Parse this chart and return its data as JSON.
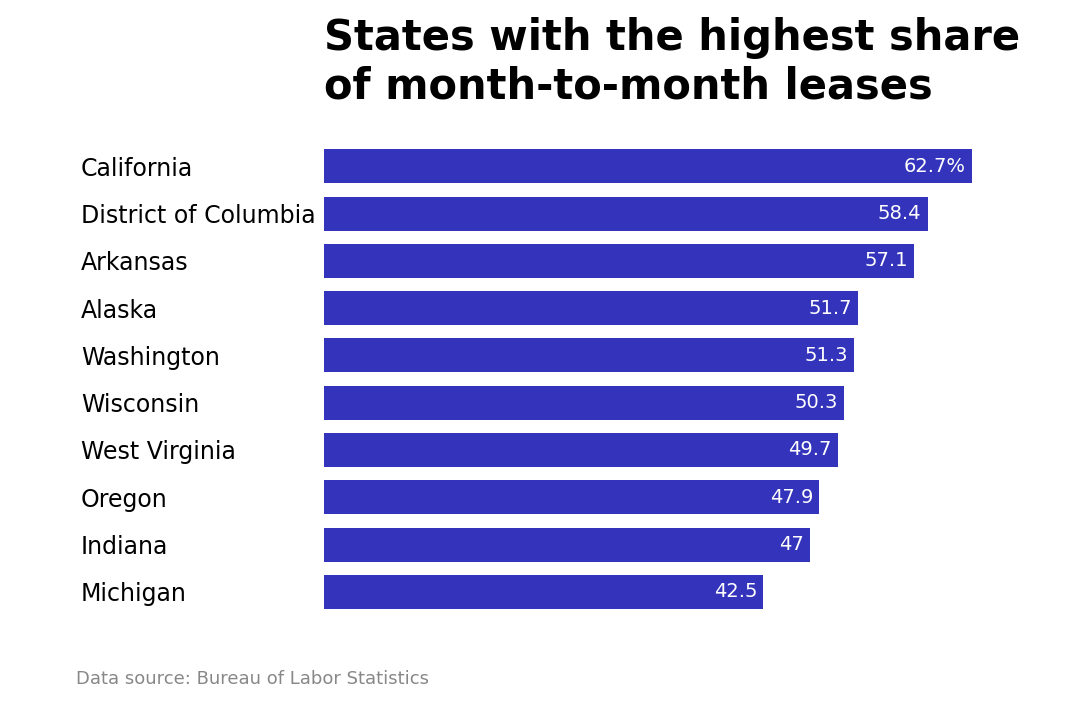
{
  "title": "States with the highest share\nof month-to-month leases",
  "categories": [
    "California",
    "District of Columbia",
    "Arkansas",
    "Alaska",
    "Washington",
    "Wisconsin",
    "West Virginia",
    "Oregon",
    "Indiana",
    "Michigan"
  ],
  "values": [
    62.7,
    58.4,
    57.1,
    51.7,
    51.3,
    50.3,
    49.7,
    47.9,
    47.0,
    42.5
  ],
  "labels": [
    "62.7%",
    "58.4",
    "57.1",
    "51.7",
    "51.3",
    "50.3",
    "49.7",
    "47.9",
    "47",
    "42.5"
  ],
  "bar_color": "#3333BB",
  "background_color": "#ffffff",
  "title_fontsize": 30,
  "bar_label_fontsize": 14,
  "y_label_fontsize": 17,
  "source_text": "Data source: Bureau of Labor Statistics",
  "source_fontsize": 13,
  "xlim": [
    0,
    70
  ]
}
